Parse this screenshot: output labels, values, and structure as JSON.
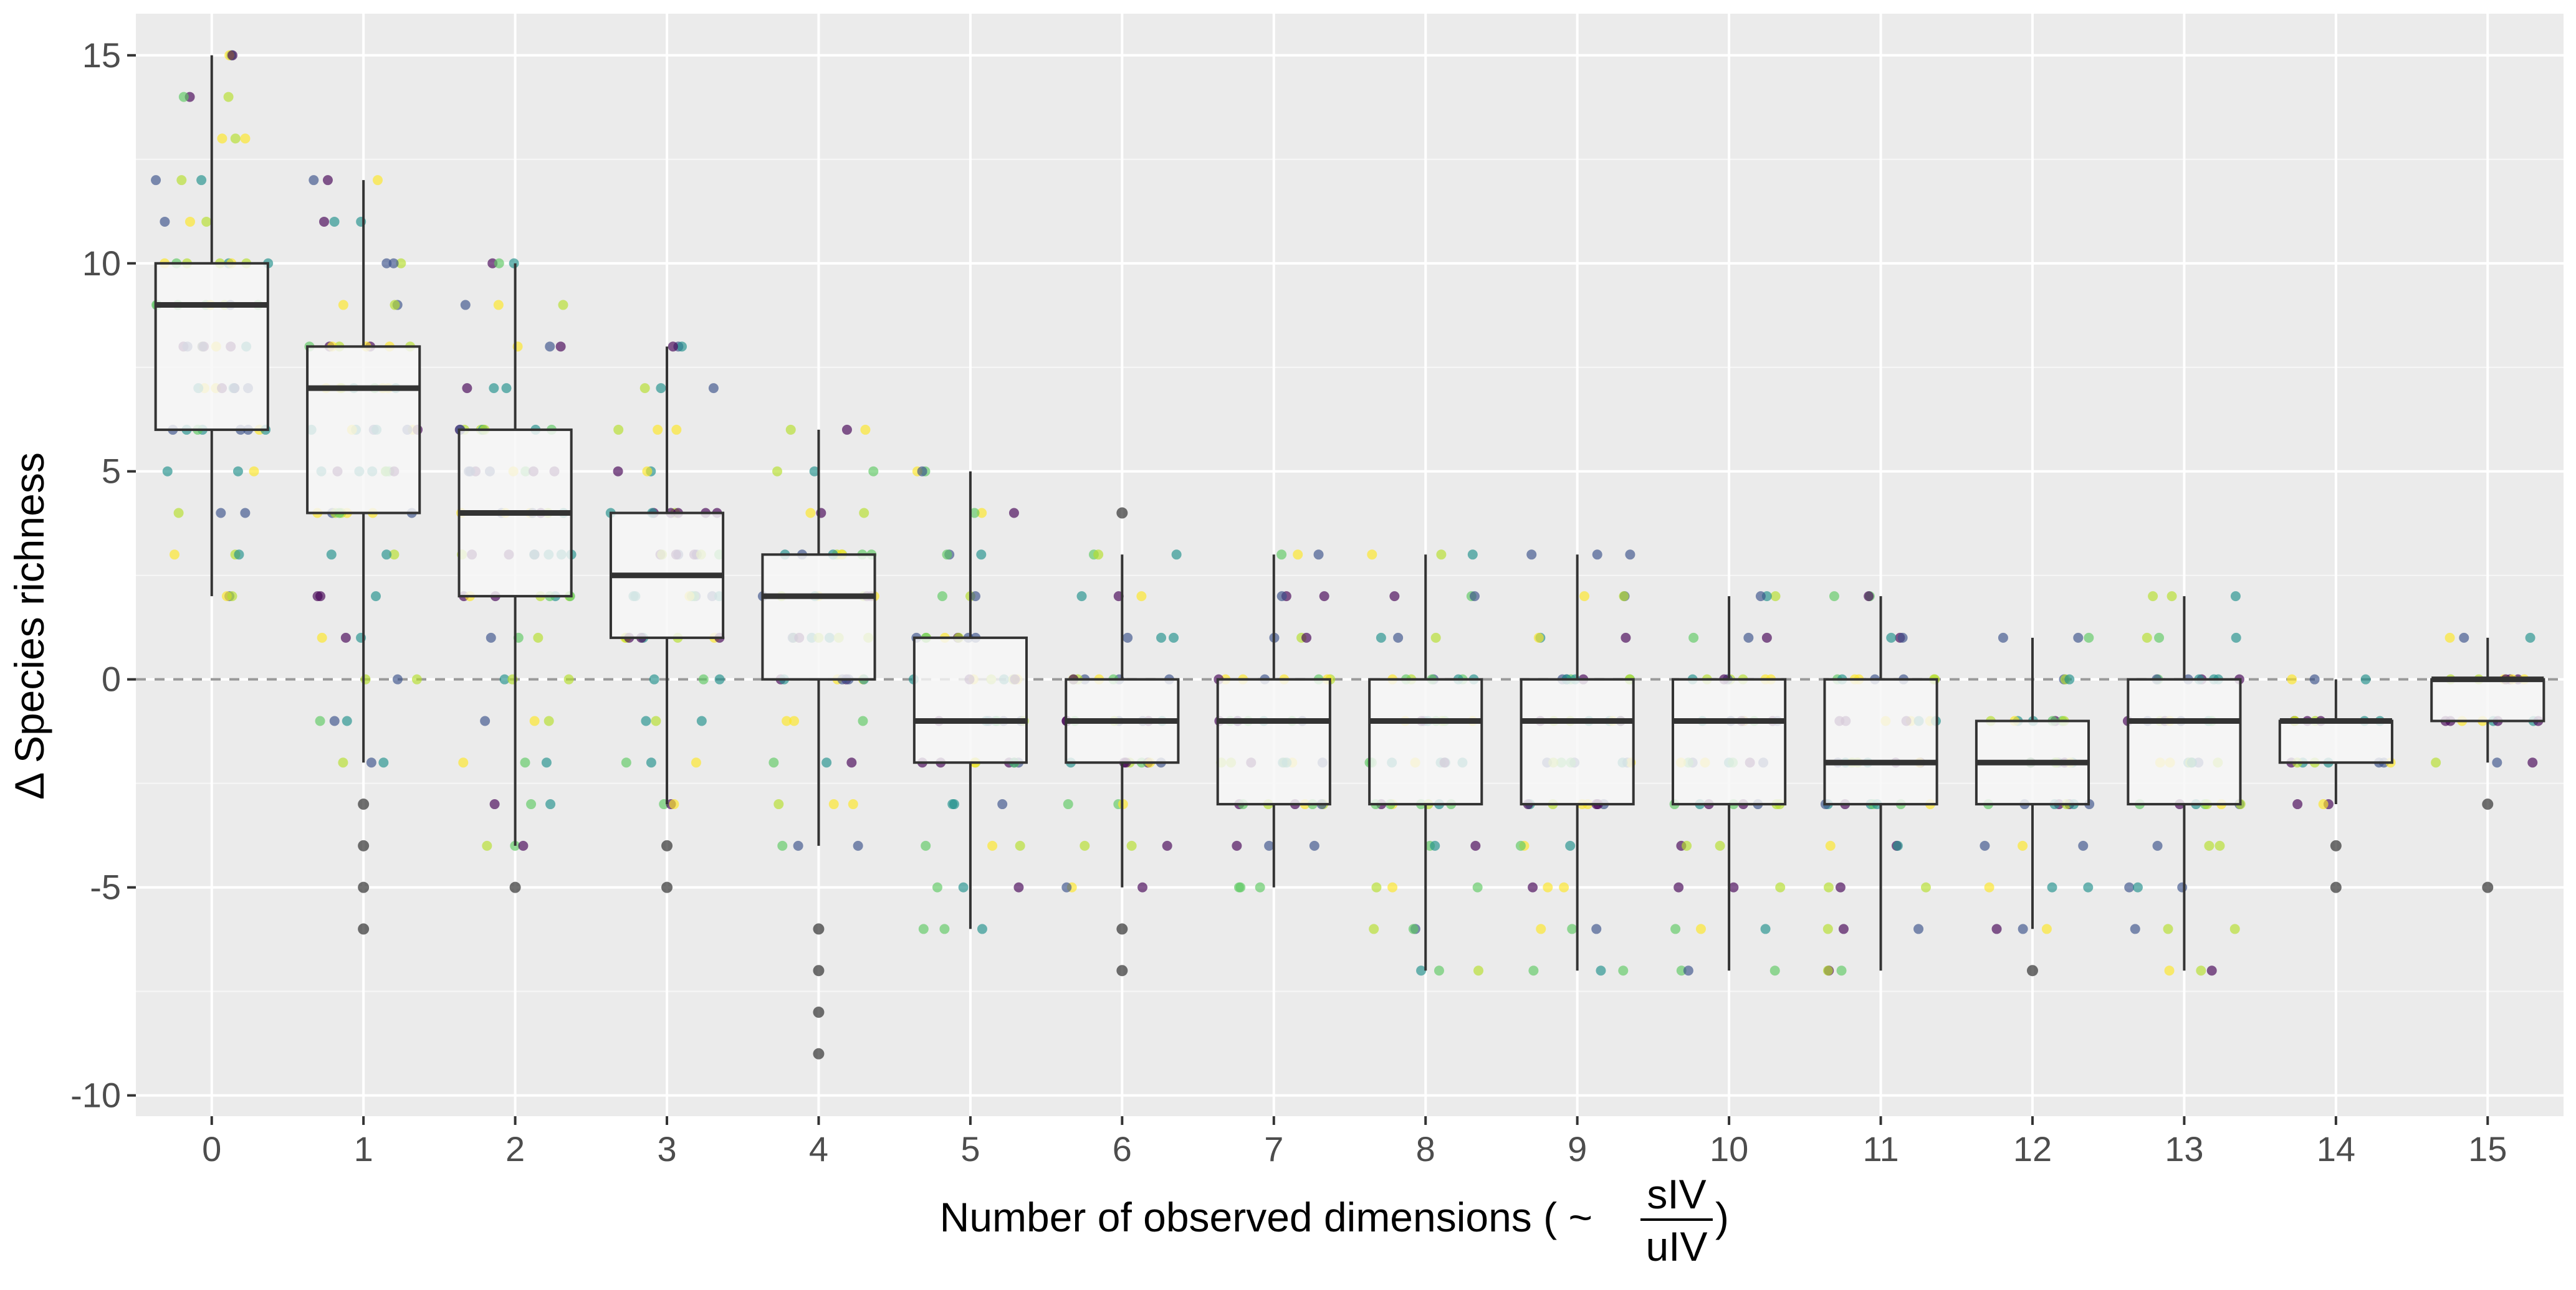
{
  "chart_data": {
    "type": "box",
    "xlabel": "Number of observed dimensions ( ~",
    "xlabel_fraction": {
      "numerator": "sIV",
      "denominator": "uIV"
    },
    "xlabel_suffix": ")",
    "ylabel": "Δ Species richness",
    "ylim": [
      -10.5,
      16
    ],
    "yticks": [
      15,
      10,
      5,
      0,
      -5,
      -10
    ],
    "grid": true,
    "reference_line": {
      "y": 0,
      "style": "dashed"
    },
    "categories": [
      "0",
      "1",
      "2",
      "3",
      "4",
      "5",
      "6",
      "7",
      "8",
      "9",
      "10",
      "11",
      "12",
      "13",
      "14",
      "15"
    ],
    "boxes": [
      {
        "x": "0",
        "whisker_low": 2,
        "q1": 6,
        "median": 9,
        "q3": 10,
        "whisker_high": 15,
        "outliers": []
      },
      {
        "x": "1",
        "whisker_low": -2,
        "q1": 4,
        "median": 7,
        "q3": 8,
        "whisker_high": 12,
        "outliers": [
          -3,
          -4,
          -5,
          -6
        ]
      },
      {
        "x": "2",
        "whisker_low": -4,
        "q1": 2,
        "median": 4,
        "q3": 6,
        "whisker_high": 10,
        "outliers": [
          -5
        ]
      },
      {
        "x": "3",
        "whisker_low": -3,
        "q1": 1,
        "median": 2.5,
        "q3": 4,
        "whisker_high": 8,
        "outliers": [
          -4,
          -5
        ]
      },
      {
        "x": "4",
        "whisker_low": -4,
        "q1": 0,
        "median": 2,
        "q3": 3,
        "whisker_high": 6,
        "outliers": [
          -6,
          -7,
          -8,
          -9
        ]
      },
      {
        "x": "5",
        "whisker_low": -6,
        "q1": -2,
        "median": -1,
        "q3": 1,
        "whisker_high": 5,
        "outliers": []
      },
      {
        "x": "6",
        "whisker_low": -5,
        "q1": -2,
        "median": -1,
        "q3": 0,
        "whisker_high": 3,
        "outliers": [
          4,
          -6,
          -7
        ]
      },
      {
        "x": "7",
        "whisker_low": -5,
        "q1": -3,
        "median": -1,
        "q3": 0,
        "whisker_high": 3,
        "outliers": []
      },
      {
        "x": "8",
        "whisker_low": -7,
        "q1": -3,
        "median": -1,
        "q3": 0,
        "whisker_high": 3,
        "outliers": []
      },
      {
        "x": "9",
        "whisker_low": -7,
        "q1": -3,
        "median": -1,
        "q3": 0,
        "whisker_high": 3,
        "outliers": []
      },
      {
        "x": "10",
        "whisker_low": -7,
        "q1": -3,
        "median": -1,
        "q3": 0,
        "whisker_high": 2,
        "outliers": []
      },
      {
        "x": "11",
        "whisker_low": -7,
        "q1": -3,
        "median": -2,
        "q3": 0,
        "whisker_high": 2,
        "outliers": []
      },
      {
        "x": "12",
        "whisker_low": -6,
        "q1": -3,
        "median": -2,
        "q3": -1,
        "whisker_high": 1,
        "outliers": [
          -7
        ]
      },
      {
        "x": "13",
        "whisker_low": -7,
        "q1": -3,
        "median": -1,
        "q3": 0,
        "whisker_high": 2,
        "outliers": []
      },
      {
        "x": "14",
        "whisker_low": -3,
        "q1": -2,
        "median": -1,
        "q3": -1,
        "whisker_high": 0,
        "outliers": [
          -4,
          -5
        ]
      },
      {
        "x": "15",
        "whisker_low": -2,
        "q1": -1,
        "median": 0,
        "q3": 0,
        "whisker_high": 1,
        "outliers": [
          -3,
          -5
        ]
      }
    ],
    "jitter_palette": [
      "#440154",
      "#3b528b",
      "#21918c",
      "#5ec962",
      "#b5de2b",
      "#fde725"
    ],
    "colors": {
      "panel_background": "#ebebeb",
      "grid_major": "#ffffff",
      "box_fill": "#f7f7f7",
      "box_stroke": "#333333",
      "reference_line": "#999999",
      "outlier": "#333333"
    }
  }
}
